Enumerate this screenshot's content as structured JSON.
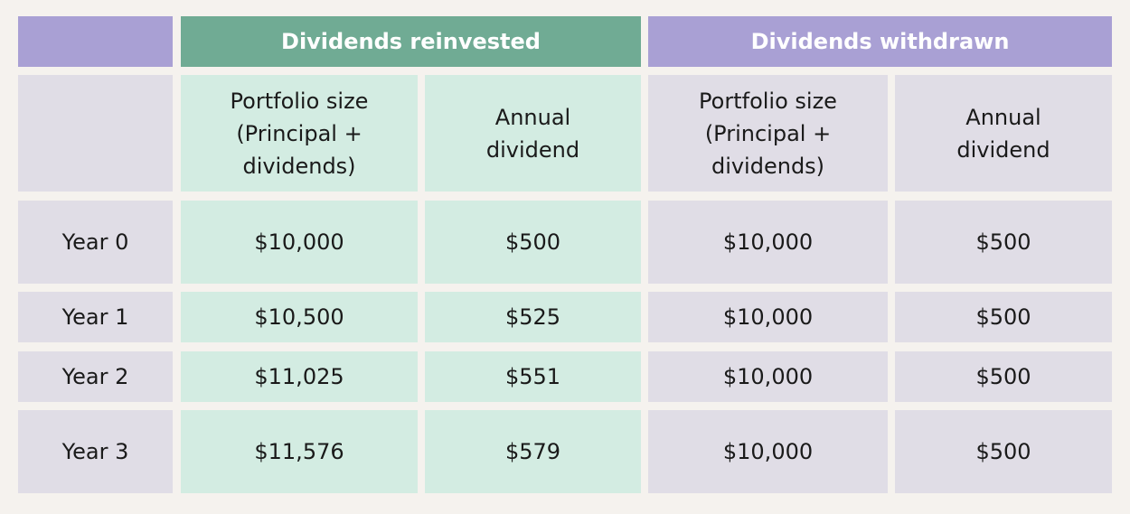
{
  "chart_data": {
    "type": "table",
    "group_headers": [
      "Dividends reinvested",
      "Dividends withdrawn"
    ],
    "columns": [
      "Portfolio size\n(Principal +\ndividends)",
      "Annual\ndividend",
      "Portfolio size\n(Principal +\ndividends)",
      "Annual\ndividend"
    ],
    "rows": [
      {
        "label": "Year 0",
        "values": [
          "$10,000",
          "$500",
          "$10,000",
          "$500"
        ]
      },
      {
        "label": "Year 1",
        "values": [
          "$10,500",
          "$525",
          "$10,000",
          "$500"
        ]
      },
      {
        "label": "Year 2",
        "values": [
          "$11,025",
          "$551",
          "$10,000",
          "$500"
        ]
      },
      {
        "label": "Year 3",
        "values": [
          "$11,576",
          "$579",
          "$10,000",
          "$500"
        ]
      }
    ]
  },
  "colors": {
    "reinvested_header": "#70ab94",
    "withdrawn_header": "#a9a0d4",
    "reinvested_cell": "#d3ece2",
    "withdrawn_cell": "#e0dde6",
    "background": "#f5f2ee"
  }
}
